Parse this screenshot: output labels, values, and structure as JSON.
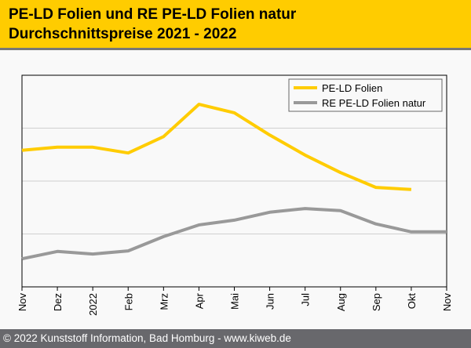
{
  "header": {
    "title_line1": "PE-LD Folien und RE PE-LD Folien natur",
    "title_line2": "Durchschnittspreise 2021 - 2022"
  },
  "footer": {
    "text": "© 2022 Kunststoff Information, Bad Homburg - www.kiweb.de"
  },
  "chart_data": {
    "type": "line",
    "title": "PE-LD Folien und RE PE-LD Folien natur Durchschnittspreise 2021 - 2022",
    "xlabel": "",
    "ylabel": "",
    "y_units": "relative (no y-axis labels shown)",
    "ylim": [
      0,
      4
    ],
    "grid": true,
    "legend_position": "top-right",
    "categories": [
      "Nov",
      "Dez",
      "2022",
      "Feb",
      "Mrz",
      "Apr",
      "Mai",
      "Jun",
      "Jul",
      "Aug",
      "Sep",
      "Okt",
      "Nov"
    ],
    "series": [
      {
        "name": "PE-LD Folien",
        "color": "#ffcc00",
        "values": [
          2.58,
          2.64,
          2.64,
          2.53,
          2.84,
          3.45,
          3.29,
          2.87,
          2.49,
          2.16,
          1.88,
          1.84,
          null
        ]
      },
      {
        "name": "RE PE-LD Folien natur",
        "color": "#999999",
        "values": [
          0.53,
          0.67,
          0.62,
          0.68,
          0.95,
          1.17,
          1.26,
          1.41,
          1.48,
          1.44,
          1.19,
          1.04,
          1.04
        ]
      }
    ]
  }
}
